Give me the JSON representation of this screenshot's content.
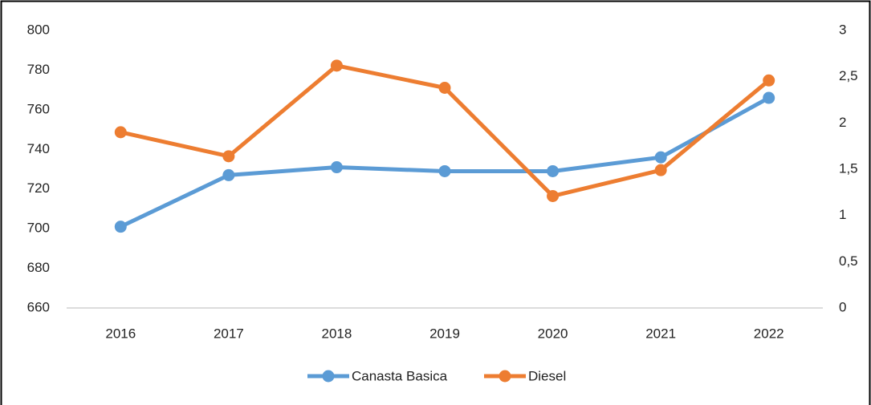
{
  "chart_data": {
    "type": "line",
    "categories": [
      "2016",
      "2017",
      "2018",
      "2019",
      "2020",
      "2021",
      "2022"
    ],
    "series": [
      {
        "name": "Canasta Basica",
        "color": "#5b9bd5",
        "values": [
          701,
          727,
          731,
          729,
          729,
          736,
          766
        ]
      },
      {
        "name": "Diesel",
        "color": "#ed7d31",
        "axis": "y2",
        "values": [
          1.9,
          1.64,
          2.62,
          2.38,
          1.21,
          1.49,
          2.46
        ]
      }
    ],
    "ylim": [
      660,
      800
    ],
    "yticks": [
      660,
      680,
      700,
      720,
      740,
      760,
      780,
      800
    ],
    "y2lim": [
      0,
      3
    ],
    "y2ticks": [
      0,
      {
        "value": 0.5,
        "label": "0,5"
      },
      1,
      {
        "value": 1.5,
        "label": "1,5"
      },
      2,
      {
        "value": 2.5,
        "label": "2,5"
      },
      3
    ],
    "legend": "bottom"
  }
}
